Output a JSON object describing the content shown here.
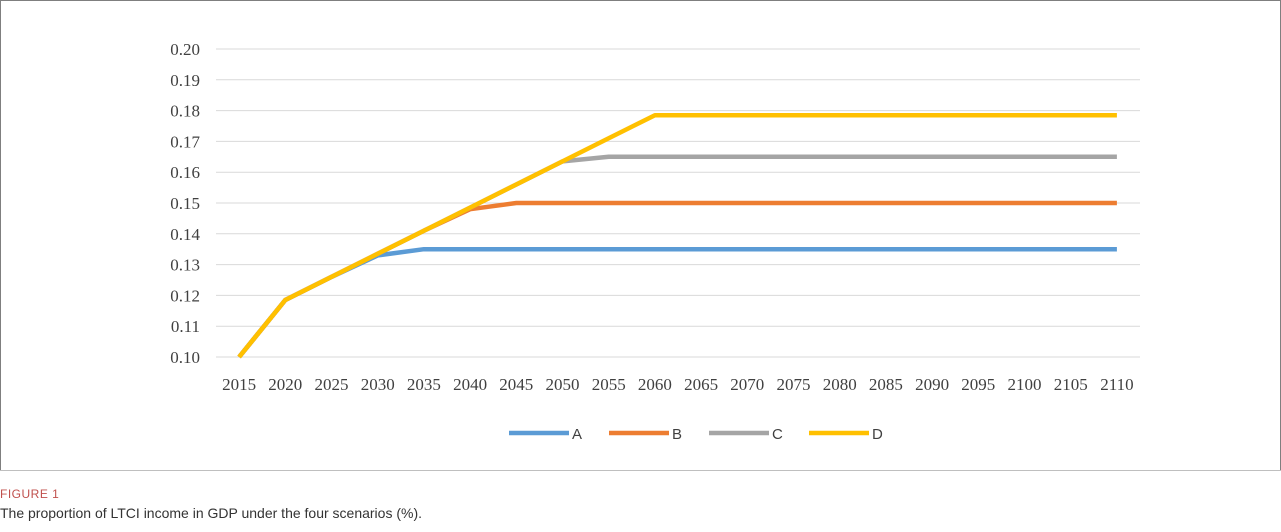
{
  "figure": {
    "label": "FIGURE 1",
    "caption": "The proportion of LTCI income in GDP under the four scenarios (%)."
  },
  "chart_data": {
    "type": "line",
    "title": "",
    "xlabel": "",
    "ylabel": "",
    "x": [
      2015,
      2020,
      2025,
      2030,
      2035,
      2040,
      2045,
      2050,
      2055,
      2060,
      2065,
      2070,
      2075,
      2080,
      2085,
      2090,
      2095,
      2100,
      2105,
      2110
    ],
    "ylim": [
      0.1,
      0.2
    ],
    "yticks": [
      "0.10",
      "0.11",
      "0.12",
      "0.13",
      "0.14",
      "0.15",
      "0.16",
      "0.17",
      "0.18",
      "0.19",
      "0.20"
    ],
    "grid": true,
    "legend_position": "bottom",
    "series": [
      {
        "name": "A",
        "color": "#5b9bd5",
        "values": [
          0.1,
          0.1185,
          0.126,
          0.133,
          0.135,
          0.135,
          0.135,
          0.135,
          0.135,
          0.135,
          0.135,
          0.135,
          0.135,
          0.135,
          0.135,
          0.135,
          0.135,
          0.135,
          0.135,
          0.135
        ]
      },
      {
        "name": "B",
        "color": "#ed7d31",
        "values": [
          0.1,
          0.1185,
          0.126,
          0.1335,
          0.141,
          0.148,
          0.15,
          0.15,
          0.15,
          0.15,
          0.15,
          0.15,
          0.15,
          0.15,
          0.15,
          0.15,
          0.15,
          0.15,
          0.15,
          0.15
        ]
      },
      {
        "name": "C",
        "color": "#a5a5a5",
        "values": [
          0.1,
          0.1185,
          0.126,
          0.1335,
          0.141,
          0.1485,
          0.156,
          0.1635,
          0.165,
          0.165,
          0.165,
          0.165,
          0.165,
          0.165,
          0.165,
          0.165,
          0.165,
          0.165,
          0.165,
          0.165
        ]
      },
      {
        "name": "D",
        "color": "#ffc000",
        "values": [
          0.1,
          0.1185,
          0.126,
          0.1335,
          0.141,
          0.1485,
          0.156,
          0.1635,
          0.171,
          0.1785,
          0.1785,
          0.1785,
          0.1785,
          0.1785,
          0.1785,
          0.1785,
          0.1785,
          0.1785,
          0.1785,
          0.1785
        ]
      }
    ]
  }
}
